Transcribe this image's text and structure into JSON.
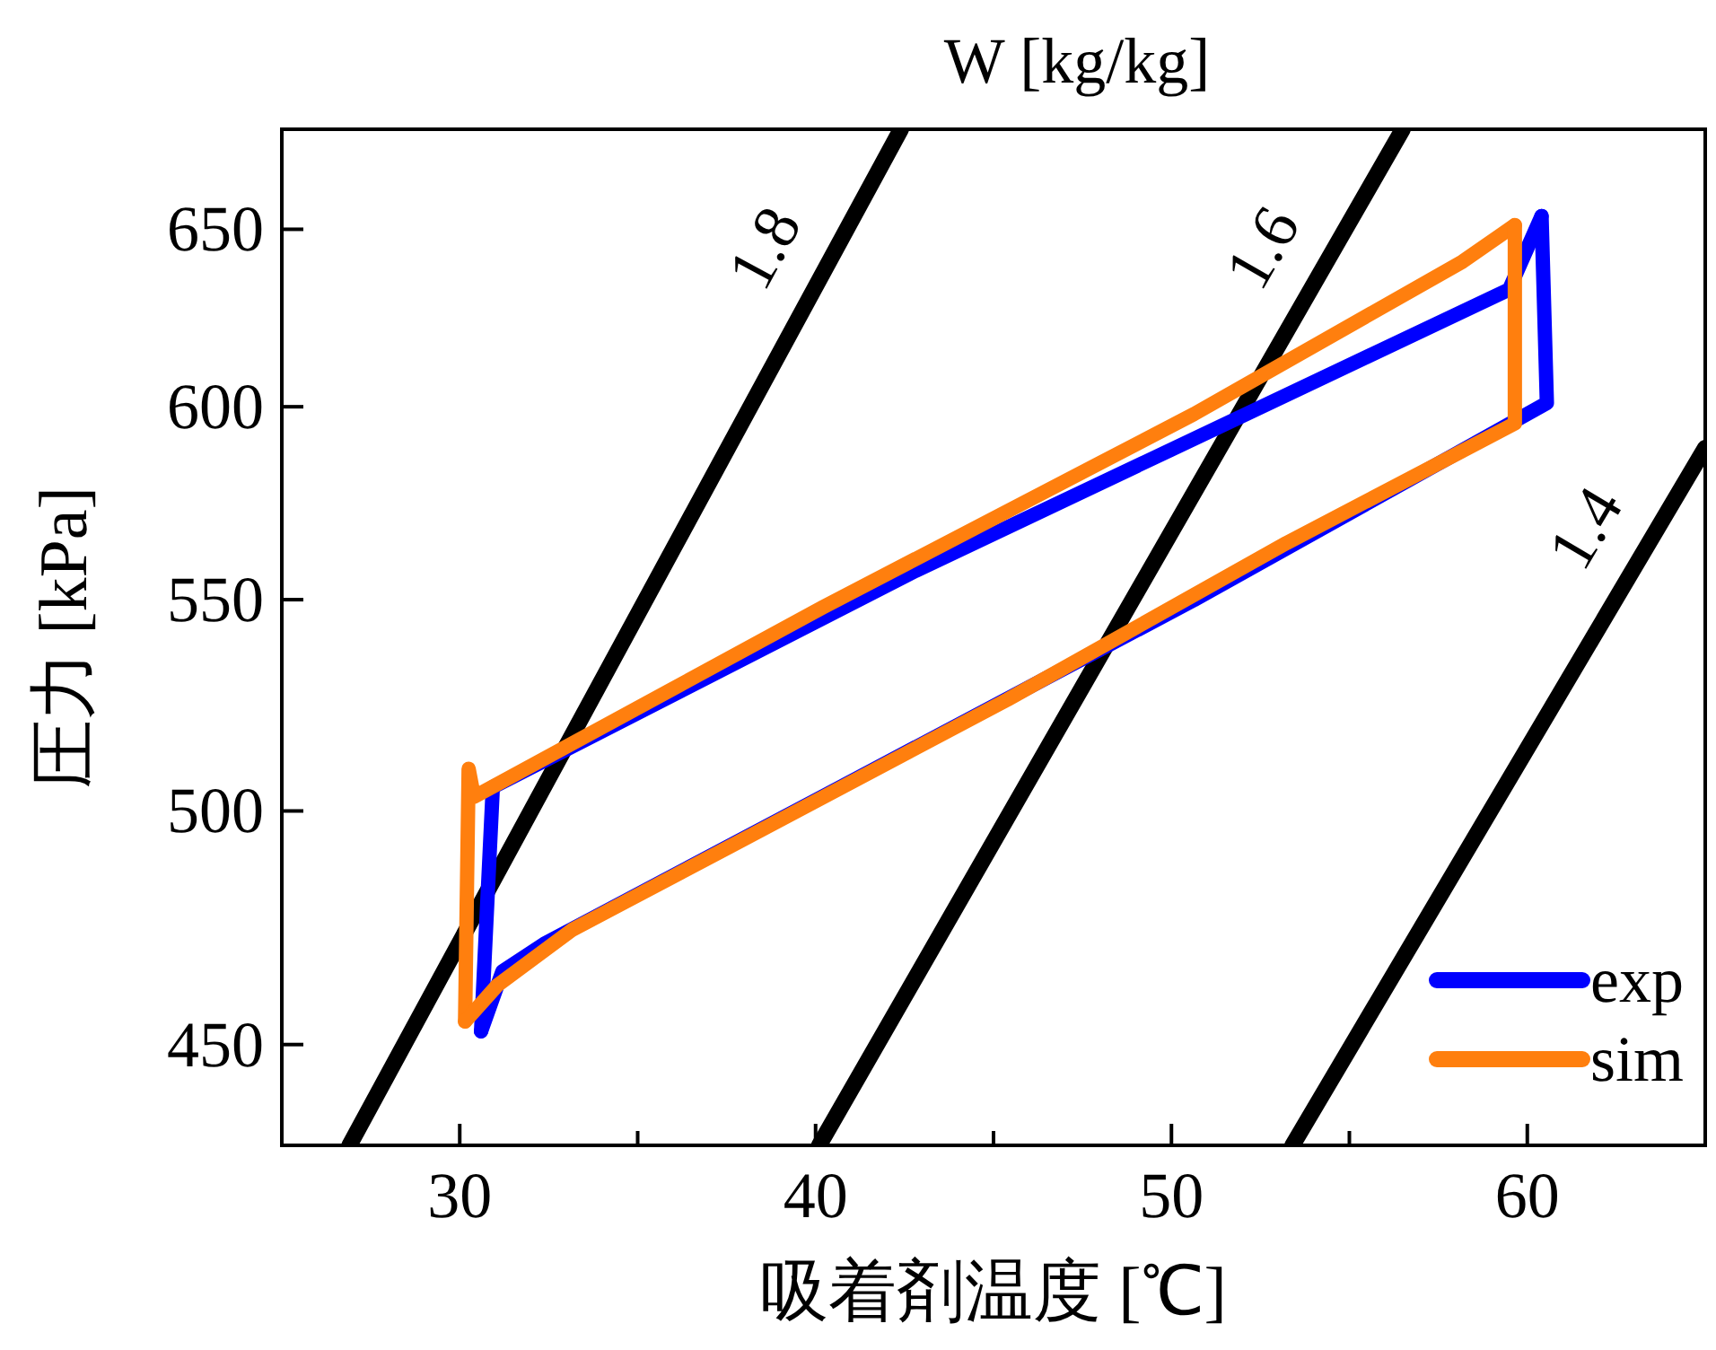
{
  "chart_data": {
    "type": "line",
    "xlabel": "吸着剤温度 [℃]",
    "ylabel": "圧力 [kPa]",
    "log": "y",
    "legend": "bottom right",
    "xlim": [
      25,
      65
    ],
    "ylim": [
      430,
      680
    ],
    "xticks": [
      30,
      {
        "value": 35,
        "label": null
      },
      40,
      {
        "value": 45,
        "label": null
      },
      50,
      {
        "value": 55,
        "label": null
      },
      60
    ],
    "yticks": [
      450,
      500,
      550,
      600,
      650
    ],
    "annotations": [
      "W [kg/kg]",
      "1.8",
      "1.6",
      "1.4"
    ],
    "series": [
      {
        "color": "#000000",
        "x": [
          26.9,
          42.4
        ],
        "values": [
          430,
          680
        ]
      },
      {
        "color": "#000000",
        "x": [
          40.1,
          56.5
        ],
        "values": [
          430,
          680
        ]
      },
      {
        "color": "#000000",
        "x": [
          53.4,
          65
        ],
        "values": [
          430,
          589
        ]
      },
      {
        "name": "exp",
        "color": "#0000ff",
        "x": [
          30.6,
          30.93,
          42.81,
          59.49,
          60.4
        ],
        "values": [
          452.7,
          505.4,
          557.2,
          632.6,
          653.9
        ]
      },
      {
        "color": "#0000ff",
        "x": [
          30.6,
          31.2,
          32.37,
          40.2,
          50.63,
          60.55,
          60.4
        ],
        "values": [
          452.7,
          465.1,
          470.9,
          503.3,
          549.9,
          601,
          653.9
        ]
      },
      {
        "name": "sim",
        "color": "#ff7f0e",
        "x": [
          30.15,
          30.25,
          30.4,
          40.2,
          50.63,
          58.18,
          59.65
        ],
        "values": [
          454.7,
          509.6,
          503.2,
          548.1,
          598,
          640.6,
          651.2
        ]
      },
      {
        "color": "#ff7f0e",
        "x": [
          30.15,
          31.06,
          33.16,
          37.58,
          45.4,
          53.23,
          59.65,
          59.65
        ],
        "values": [
          454.7,
          462.2,
          473.9,
          492,
          525.8,
          564.2,
          595.5,
          651.2
        ]
      }
    ]
  }
}
